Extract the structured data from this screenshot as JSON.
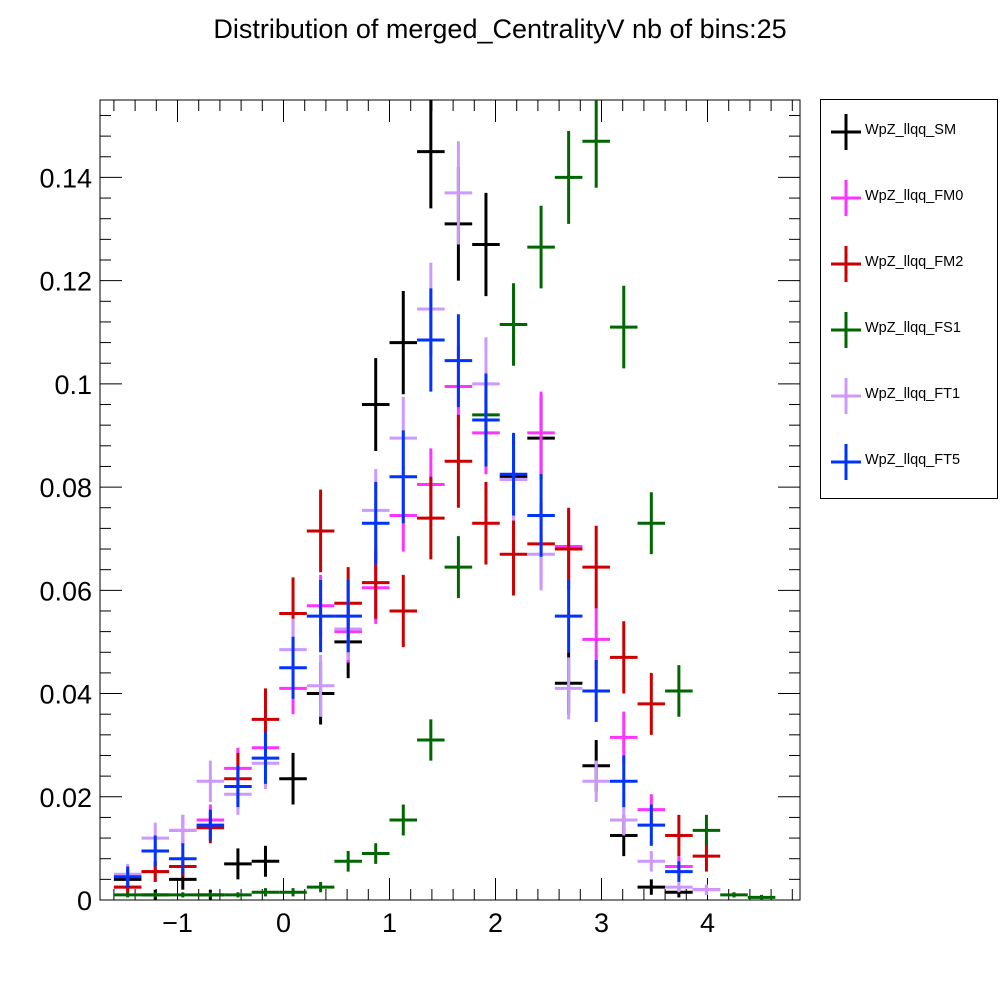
{
  "title": "Distribution of merged_CentralityV nb of bins:25",
  "chart_data": {
    "type": "scatter",
    "title": "Distribution of merged_CentralityV nb of bins:25",
    "xlabel": "",
    "ylabel": "",
    "xlim": [
      -1.6,
      4.9
    ],
    "ylim": [
      0,
      0.155
    ],
    "x_ticks": [
      -1,
      0,
      1,
      2,
      3,
      4
    ],
    "x_tick_labels": [
      "−1",
      "0",
      "1",
      "2",
      "3",
      "4"
    ],
    "y_ticks": [
      0,
      0.02,
      0.04,
      0.06,
      0.08,
      0.1,
      0.12,
      0.14
    ],
    "y_tick_labels": [
      "0",
      "0.02",
      "0.04",
      "0.06",
      "0.08",
      "0.1",
      "0.12",
      "0.14"
    ],
    "bin_width": 0.26,
    "x": [
      -1.47,
      -1.21,
      -0.95,
      -0.69,
      -0.43,
      -0.17,
      0.09,
      0.35,
      0.61,
      0.87,
      1.13,
      1.39,
      1.65,
      1.91,
      2.17,
      2.43,
      2.69,
      2.95,
      3.21,
      3.47,
      3.73,
      3.99,
      4.25,
      4.51,
      4.77
    ],
    "legend_position": "right",
    "series": [
      {
        "name": "WpZ_llqq_SM",
        "color": "#000000",
        "values": [
          0.004,
          0.001,
          0.004,
          0.001,
          0.007,
          0.0075,
          0.0235,
          0.04,
          0.05,
          0.096,
          0.108,
          0.145,
          0.131,
          0.127,
          0.082,
          0.0895,
          0.042,
          0.026,
          0.0125,
          0.0025,
          0.0015,
          0,
          0,
          0,
          0
        ],
        "errors": [
          0.002,
          0.001,
          0.002,
          0.001,
          0.003,
          0.003,
          0.005,
          0.006,
          0.007,
          0.009,
          0.01,
          0.011,
          0.011,
          0.01,
          0.008,
          0.008,
          0.006,
          0.005,
          0.004,
          0.0015,
          0.001,
          0,
          0,
          0,
          0
        ]
      },
      {
        "name": "WpZ_llqq_FM0",
        "color": "#ff33ff",
        "values": [
          0.0025,
          0.0055,
          0.0135,
          0.0155,
          0.0255,
          0.0295,
          0.041,
          0.057,
          0.052,
          0.0605,
          0.0745,
          0.0805,
          0.0995,
          0.0905,
          0.0815,
          0.0905,
          0.0685,
          0.0505,
          0.0315,
          0.0175,
          0.0065,
          0.002,
          0,
          0,
          0
        ],
        "errors": [
          0.001,
          0.002,
          0.003,
          0.003,
          0.004,
          0.004,
          0.005,
          0.006,
          0.006,
          0.007,
          0.007,
          0.007,
          0.008,
          0.008,
          0.007,
          0.008,
          0.007,
          0.006,
          0.005,
          0.003,
          0.002,
          0.001,
          0,
          0,
          0
        ]
      },
      {
        "name": "WpZ_llqq_FM2",
        "color": "#cc0000",
        "values": [
          0.0025,
          0.0055,
          0.0065,
          0.014,
          0.0235,
          0.035,
          0.0555,
          0.0715,
          0.0575,
          0.0615,
          0.056,
          0.074,
          0.085,
          0.073,
          0.067,
          0.069,
          0.068,
          0.0645,
          0.047,
          0.038,
          0.0125,
          0.0085,
          0,
          0,
          0
        ],
        "errors": [
          0.0015,
          0.002,
          0.002,
          0.003,
          0.005,
          0.006,
          0.007,
          0.008,
          0.007,
          0.007,
          0.007,
          0.008,
          0.009,
          0.008,
          0.008,
          0.008,
          0.008,
          0.008,
          0.007,
          0.006,
          0.004,
          0.003,
          0,
          0,
          0
        ]
      },
      {
        "name": "WpZ_llqq_FS1",
        "color": "#006600",
        "values": [
          0.001,
          0.001,
          0.001,
          0.001,
          0.001,
          0.0015,
          0.0015,
          0.0025,
          0.0075,
          0.009,
          0.0155,
          0.031,
          0.0645,
          0.094,
          0.1115,
          0.1265,
          0.14,
          0.147,
          0.111,
          0.073,
          0.0405,
          0.0135,
          0.001,
          0.0005,
          0
        ],
        "errors": [
          0.0005,
          0.0005,
          0.0005,
          0.0005,
          0.0005,
          0.0008,
          0.0008,
          0.001,
          0.002,
          0.002,
          0.003,
          0.004,
          0.006,
          0.007,
          0.008,
          0.008,
          0.009,
          0.009,
          0.008,
          0.006,
          0.005,
          0.003,
          0.0005,
          0.0005,
          0
        ]
      },
      {
        "name": "WpZ_llqq_FT1",
        "color": "#cc99ff",
        "values": [
          0.005,
          0.012,
          0.0135,
          0.023,
          0.0205,
          0.0265,
          0.0485,
          0.0415,
          0.0525,
          0.0755,
          0.0895,
          0.1145,
          0.137,
          0.1,
          0.0815,
          0.067,
          0.041,
          0.023,
          0.0155,
          0.0075,
          0.0025,
          0.002,
          0,
          0,
          0
        ],
        "errors": [
          0.002,
          0.003,
          0.003,
          0.004,
          0.004,
          0.005,
          0.006,
          0.006,
          0.006,
          0.008,
          0.008,
          0.009,
          0.01,
          0.009,
          0.008,
          0.007,
          0.006,
          0.004,
          0.003,
          0.002,
          0.001,
          0.001,
          0,
          0,
          0
        ]
      },
      {
        "name": "WpZ_llqq_FT5",
        "color": "#0033ff",
        "values": [
          0.0045,
          0.0095,
          0.008,
          0.0145,
          0.022,
          0.0275,
          0.045,
          0.055,
          0.055,
          0.073,
          0.082,
          0.1085,
          0.1045,
          0.093,
          0.0825,
          0.0745,
          0.055,
          0.0405,
          0.023,
          0.0145,
          0.0055,
          0,
          0,
          0,
          0
        ],
        "errors": [
          0.002,
          0.003,
          0.003,
          0.003,
          0.004,
          0.005,
          0.006,
          0.007,
          0.007,
          0.008,
          0.009,
          0.01,
          0.009,
          0.009,
          0.008,
          0.008,
          0.007,
          0.006,
          0.005,
          0.004,
          0.002,
          0,
          0,
          0,
          0
        ]
      }
    ]
  }
}
